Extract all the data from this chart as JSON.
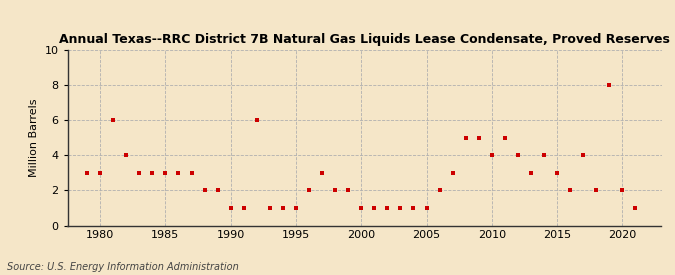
{
  "title": "Annual Texas--RRC District 7B Natural Gas Liquids Lease Condensate, Proved Reserves",
  "ylabel": "Million Barrels",
  "source": "Source: U.S. Energy Information Administration",
  "background_color": "#f5e6c8",
  "plot_background_color": "#f5e6c8",
  "marker_color": "#cc0000",
  "marker": "s",
  "marker_size": 3.5,
  "xlim": [
    1977.5,
    2023
  ],
  "ylim": [
    0,
    10
  ],
  "yticks": [
    0,
    2,
    4,
    6,
    8,
    10
  ],
  "xticks": [
    1980,
    1985,
    1990,
    1995,
    2000,
    2005,
    2010,
    2015,
    2020
  ],
  "years": [
    1979,
    1980,
    1981,
    1982,
    1983,
    1984,
    1985,
    1986,
    1987,
    1988,
    1989,
    1990,
    1991,
    1992,
    1993,
    1994,
    1995,
    1996,
    1997,
    1998,
    1999,
    2000,
    2001,
    2002,
    2003,
    2004,
    2005,
    2006,
    2007,
    2008,
    2009,
    2010,
    2011,
    2012,
    2013,
    2014,
    2015,
    2016,
    2017,
    2018,
    2019,
    2020,
    2021
  ],
  "values": [
    3,
    3,
    6,
    4,
    3,
    3,
    3,
    3,
    3,
    2,
    2,
    1,
    1,
    6,
    1,
    1,
    1,
    2,
    3,
    2,
    2,
    1,
    1,
    1,
    1,
    1,
    1,
    2,
    3,
    5,
    5,
    4,
    5,
    4,
    3,
    4,
    3,
    2,
    4,
    2,
    8,
    2,
    1
  ]
}
